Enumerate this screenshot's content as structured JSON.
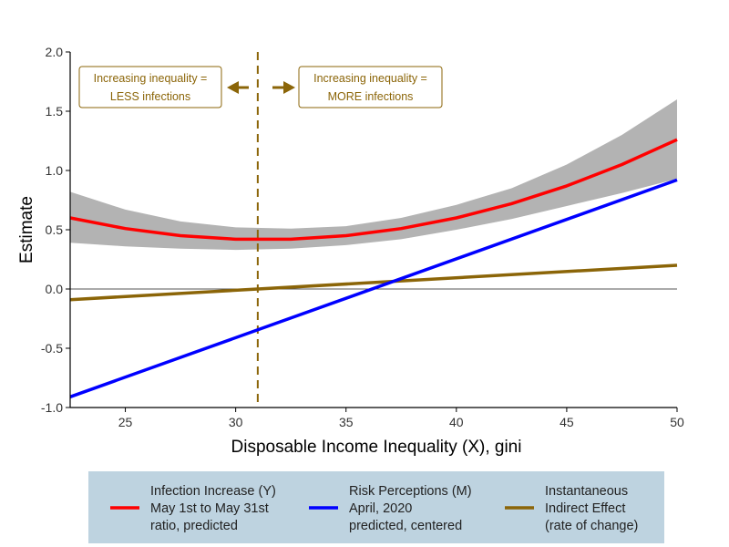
{
  "chart_data": {
    "type": "line",
    "xlabel": "Disposable Income Inequality (X), gini",
    "ylabel": "Estimate",
    "xlim": [
      22.5,
      50
    ],
    "ylim": [
      -1.0,
      2.0
    ],
    "x_ticks": [
      25,
      30,
      35,
      40,
      45,
      50
    ],
    "y_ticks": [
      -1.0,
      -0.5,
      0.0,
      0.5,
      1.0,
      1.5,
      2.0
    ],
    "x_tick_labels": [
      "25",
      "30",
      "35",
      "40",
      "45",
      "50"
    ],
    "y_tick_labels": [
      "-1.0",
      "-0.5",
      "0.0",
      "0.5",
      "1.0",
      "1.5",
      "2.0"
    ],
    "grid": false,
    "reference_hline": 0.0,
    "threshold_vline": 31.0,
    "series": [
      {
        "name": "Infection Increase (Y) May 1st to May 31st ratio, predicted",
        "color": "#ff0000",
        "x": [
          22.5,
          25,
          27.5,
          30,
          32.5,
          35,
          37.5,
          40,
          42.5,
          45,
          47.5,
          50
        ],
        "y": [
          0.6,
          0.51,
          0.45,
          0.42,
          0.42,
          0.45,
          0.51,
          0.6,
          0.72,
          0.87,
          1.05,
          1.26
        ],
        "ci_lower": [
          0.39,
          0.36,
          0.34,
          0.33,
          0.34,
          0.37,
          0.42,
          0.5,
          0.59,
          0.7,
          0.81,
          0.93
        ],
        "ci_upper": [
          0.82,
          0.67,
          0.57,
          0.52,
          0.51,
          0.53,
          0.6,
          0.71,
          0.85,
          1.05,
          1.3,
          1.6
        ]
      },
      {
        "name": "Risk Perceptions (M) April, 2020 predicted, centered",
        "color": "#0000ff",
        "x": [
          22.5,
          50
        ],
        "y": [
          -0.91,
          0.92
        ]
      },
      {
        "name": "Instantaneous Indirect Effect (rate of change)",
        "color": "#8B6508",
        "x": [
          22.5,
          50
        ],
        "y": [
          -0.09,
          0.2
        ]
      }
    ],
    "ci_color": "#b3b3b3",
    "annotations": {
      "left": [
        "Increasing inequality =",
        "LESS infections"
      ],
      "right": [
        "Increasing inequality =",
        "MORE infections"
      ],
      "color": "#8B6508"
    },
    "legend": {
      "position": "bottom",
      "background": "#bed3e0",
      "entries": [
        {
          "lines": [
            "Infection Increase (Y)",
            "May 1st to May 31st",
            "ratio, predicted"
          ],
          "color": "#ff0000"
        },
        {
          "lines": [
            "Risk Perceptions (M)",
            "April, 2020",
            "predicted, centered"
          ],
          "color": "#0000ff"
        },
        {
          "lines": [
            "Instantaneous",
            "Indirect Effect",
            "(rate of change)"
          ],
          "color": "#8B6508"
        }
      ]
    }
  }
}
